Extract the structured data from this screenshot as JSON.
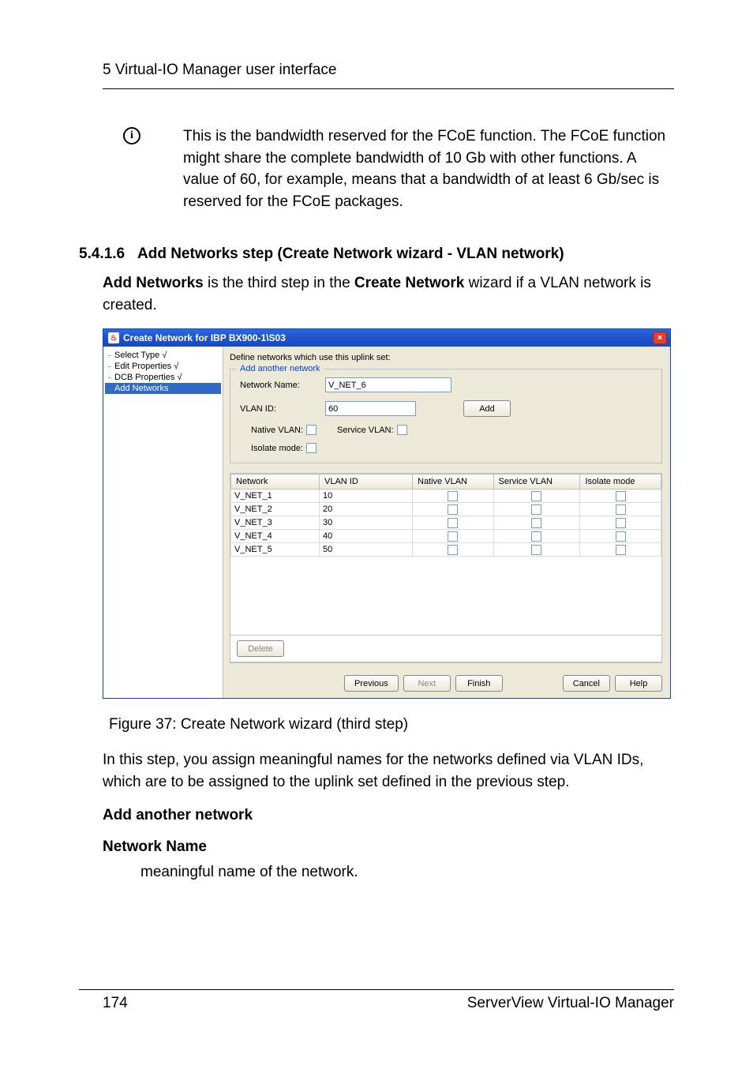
{
  "header": "5 Virtual-IO Manager user interface",
  "info_paragraph": "This is the bandwidth reserved for the FCoE function. The FCoE function might share the complete bandwidth of 10 Gb with other functions. A value of 60, for example, means that a bandwidth of at least 6 Gb/sec is reserved for the FCoE packages.",
  "section_number": "5.4.1.6",
  "section_title": "Add Networks step (Create Network wizard - VLAN network)",
  "intro_pre": "Add Networks",
  "intro_mid": " is the third step in the ",
  "intro_bold2": "Create Network",
  "intro_post": " wizard if a VLAN network is created.",
  "dialog": {
    "title": "Create Network for IBP BX900-1\\S03",
    "java_glyph": "♨",
    "close_glyph": "×",
    "tree": [
      "Select Type √",
      "Edit Properties √",
      "DCB Properties √",
      "Add Networks"
    ],
    "tree_selected_index": 3,
    "main_caption": "Define networks which use this uplink set:",
    "fieldset_legend": "Add another network",
    "labels": {
      "network_name": "Network Name:",
      "vlan_id": "VLAN ID:",
      "native_vlan": "Native VLAN:",
      "service_vlan": "Service VLAN:",
      "isolate_mode": "Isolate mode:"
    },
    "inputs": {
      "network_name": "V_NET_6",
      "vlan_id": "60"
    },
    "buttons": {
      "add": "Add",
      "delete": "Delete",
      "previous": "Previous",
      "next": "Next",
      "finish": "Finish",
      "cancel": "Cancel",
      "help": "Help"
    },
    "table": {
      "columns": [
        "Network",
        "VLAN ID",
        "Native VLAN",
        "Service VLAN",
        "Isolate mode"
      ],
      "rows": [
        {
          "net": "V_NET_1",
          "vlan": "10"
        },
        {
          "net": "V_NET_2",
          "vlan": "20"
        },
        {
          "net": "V_NET_3",
          "vlan": "30"
        },
        {
          "net": "V_NET_4",
          "vlan": "40"
        },
        {
          "net": "V_NET_5",
          "vlan": "50"
        }
      ]
    }
  },
  "figure_caption": "Figure 37: Create Network wizard (third step)",
  "after_figure": "In this step, you assign meaningful names for the networks defined via VLAN IDs, which are to be assigned to the uplink set defined in the previous step.",
  "sub1": "Add another network",
  "sub2": "Network Name",
  "sub2_def": "meaningful name of the network.",
  "footer": {
    "page": "174",
    "doc": "ServerView Virtual-IO Manager"
  },
  "info_glyph": "i"
}
